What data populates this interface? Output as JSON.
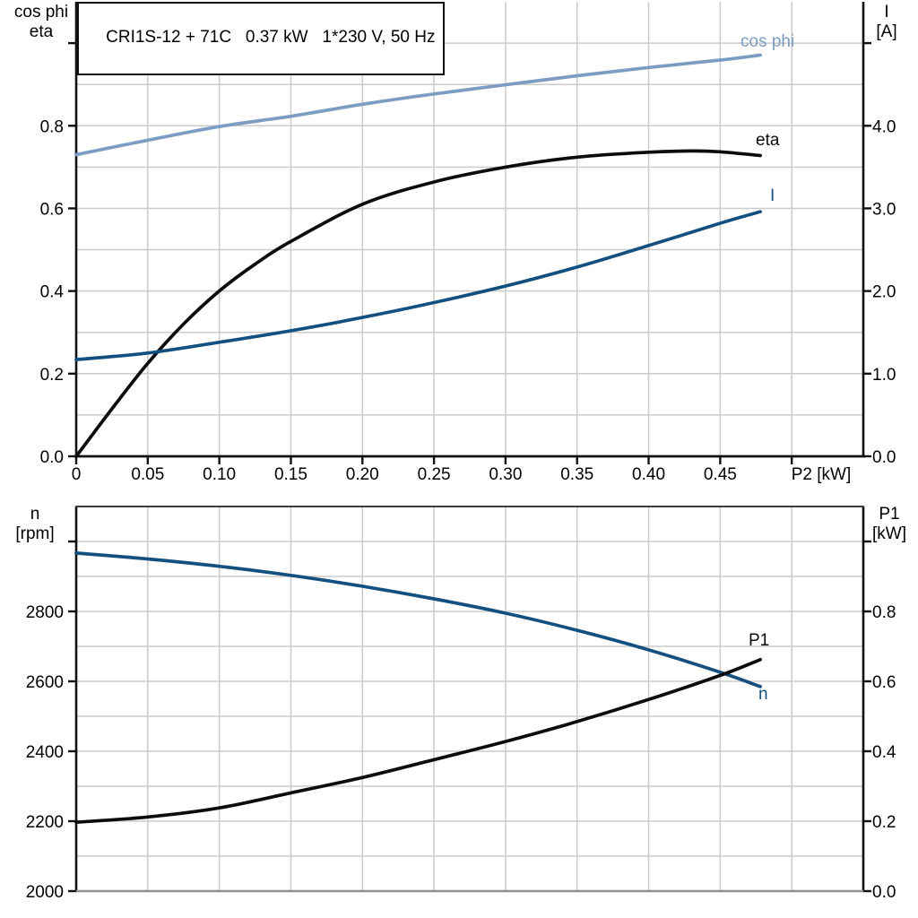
{
  "title": "CRI1S-12 + 71C   0.37 kW   1*230 V, 50 Hz",
  "colors": {
    "light_blue": "#7C9DC3",
    "dark_blue": "#14507F",
    "black": "#0c0c0c",
    "grid": "#cbcbcb",
    "axis": "#111111",
    "frame_top": "#3a3a3a",
    "frame_bottom": "#919191"
  },
  "axis_headers": {
    "top_left_1": "cos phi",
    "top_left_2": "eta",
    "top_right_1": "I",
    "top_right_2": "[A]",
    "bottom_left_1": "n",
    "bottom_left_2": "[rpm]",
    "bottom_right_1": "P1",
    "bottom_right_2": "[kW]"
  },
  "curve_labels": {
    "cos_phi": "cos phi",
    "eta": "eta",
    "current": "I",
    "p1": "P1",
    "n": "n"
  },
  "chart_data": [
    {
      "type": "line",
      "title": "CRI1S-12 + 71C   0.37 kW   1*230 V, 50 Hz",
      "xlabel": "P2 [kW]",
      "x_range": [
        0,
        0.55
      ],
      "x_tick_values": [
        0,
        0.05,
        0.1,
        0.15,
        0.2,
        0.25,
        0.3,
        0.35,
        0.4,
        0.45,
        0.5
      ],
      "x_tick_labels": [
        "0",
        "0.05",
        "0.10",
        "0.15",
        "0.20",
        "0.25",
        "0.30",
        "0.35",
        "0.40",
        "0.45",
        ""
      ],
      "grid": true,
      "legend_position": "inline-labels",
      "left_axis": {
        "title": "cos phi / eta",
        "range": [
          0,
          1.1
        ],
        "tick_values": [
          0,
          0.2,
          0.4,
          0.6,
          0.8,
          1.0
        ],
        "tick_labels": [
          "0.0",
          "0.2",
          "0.4",
          "0.6",
          "0.8",
          ""
        ],
        "grid_min": 0.1,
        "grid_max": 1.0,
        "grid_step": 0.1
      },
      "right_axis": {
        "title": "I [A]",
        "range": [
          0,
          5.5
        ],
        "tick_values": [
          0,
          1.0,
          2.0,
          3.0,
          4.0,
          5.0
        ],
        "tick_labels": [
          "0.0",
          "1.0",
          "2.0",
          "3.0",
          "4.0",
          ""
        ]
      },
      "series": [
        {
          "name": "cos phi",
          "axis": "left",
          "color_key": "light_blue",
          "x": [
            0,
            0.05,
            0.1,
            0.15,
            0.2,
            0.25,
            0.3,
            0.35,
            0.4,
            0.45,
            0.478
          ],
          "y": [
            0.73,
            0.765,
            0.798,
            0.823,
            0.852,
            0.877,
            0.899,
            0.921,
            0.941,
            0.959,
            0.971
          ]
        },
        {
          "name": "eta",
          "axis": "left",
          "color_key": "black",
          "x": [
            0,
            0.025,
            0.05,
            0.075,
            0.1,
            0.125,
            0.15,
            0.2,
            0.25,
            0.3,
            0.35,
            0.4,
            0.43,
            0.45,
            0.478
          ],
          "y": [
            0,
            0.115,
            0.225,
            0.32,
            0.4,
            0.465,
            0.52,
            0.61,
            0.664,
            0.7,
            0.724,
            0.736,
            0.739,
            0.737,
            0.728
          ]
        },
        {
          "name": "I",
          "axis": "right",
          "color_key": "dark_blue",
          "x": [
            0,
            0.05,
            0.1,
            0.15,
            0.2,
            0.25,
            0.3,
            0.35,
            0.4,
            0.45,
            0.478
          ],
          "y": [
            1.17,
            1.25,
            1.38,
            1.52,
            1.68,
            1.86,
            2.06,
            2.29,
            2.55,
            2.82,
            2.96
          ]
        }
      ]
    },
    {
      "type": "line",
      "xlabel": "",
      "x_range": [
        0,
        0.55
      ],
      "x_tick_values": [
        0,
        0.05,
        0.1,
        0.15,
        0.2,
        0.25,
        0.3,
        0.35,
        0.4,
        0.45,
        0.5
      ],
      "x_tick_labels": [],
      "grid": true,
      "left_axis": {
        "title": "n [rpm]",
        "range": [
          2000,
          3100
        ],
        "tick_values": [
          2000,
          2200,
          2400,
          2600,
          2800,
          3000
        ],
        "tick_labels": [
          "2000",
          "2200",
          "2400",
          "2600",
          "2800",
          ""
        ],
        "grid_min": 2100,
        "grid_max": 3000,
        "grid_step": 100
      },
      "right_axis": {
        "title": "P1 [kW]",
        "range": [
          0,
          1.1
        ],
        "tick_values": [
          0,
          0.2,
          0.4,
          0.6,
          0.8,
          1.0
        ],
        "tick_labels": [
          "0.0",
          "0.2",
          "0.4",
          "0.6",
          "0.8",
          ""
        ]
      },
      "series": [
        {
          "name": "n",
          "axis": "left",
          "color_key": "dark_blue",
          "x": [
            0,
            0.05,
            0.1,
            0.15,
            0.2,
            0.25,
            0.3,
            0.35,
            0.4,
            0.45,
            0.478
          ],
          "y": [
            2967,
            2950,
            2929,
            2903,
            2872,
            2836,
            2795,
            2746,
            2690,
            2626,
            2585
          ]
        },
        {
          "name": "P1",
          "axis": "right",
          "color_key": "black",
          "x": [
            0,
            0.05,
            0.1,
            0.15,
            0.2,
            0.25,
            0.3,
            0.35,
            0.4,
            0.45,
            0.478
          ],
          "y": [
            0.197,
            0.212,
            0.238,
            0.281,
            0.325,
            0.376,
            0.428,
            0.485,
            0.548,
            0.617,
            0.662
          ]
        }
      ]
    }
  ]
}
